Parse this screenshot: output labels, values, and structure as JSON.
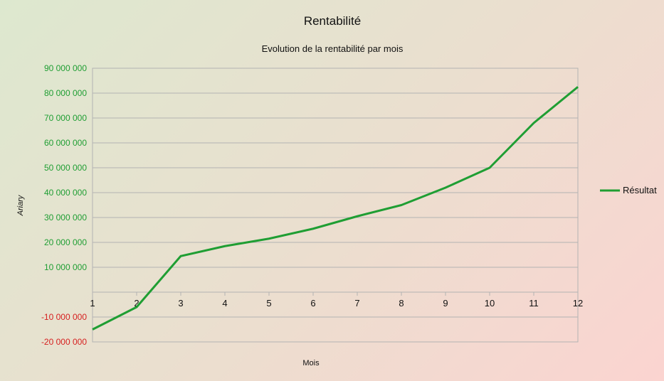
{
  "chart_data": {
    "type": "line",
    "title": "Rentabilité",
    "subtitle": "Evolution de la rentabilité par mois",
    "xlabel": "Mois",
    "ylabel": "Ariary",
    "categories": [
      "1",
      "2",
      "3",
      "4",
      "5",
      "6",
      "7",
      "8",
      "9",
      "10",
      "11",
      "12"
    ],
    "series": [
      {
        "name": "Résultat",
        "color": "#1f9e33",
        "values": [
          -15000000,
          -6000000,
          14500000,
          18500000,
          21500000,
          25500000,
          30500000,
          35000000,
          42000000,
          50000000,
          68000000,
          82500000
        ]
      }
    ],
    "ylim": [
      -20000000,
      90000000
    ],
    "y_ticks": [
      {
        "value": 90000000,
        "label": "90 000 000"
      },
      {
        "value": 80000000,
        "label": "80 000 000"
      },
      {
        "value": 70000000,
        "label": "70 000 000"
      },
      {
        "value": 60000000,
        "label": "60 000 000"
      },
      {
        "value": 50000000,
        "label": "50 000 000"
      },
      {
        "value": 40000000,
        "label": "40 000 000"
      },
      {
        "value": 30000000,
        "label": "30 000 000"
      },
      {
        "value": 20000000,
        "label": "20 000 000"
      },
      {
        "value": 10000000,
        "label": "10 000 000"
      },
      {
        "value": -10000000,
        "label": "-10 000 000"
      },
      {
        "value": -20000000,
        "label": "-20 000 000"
      }
    ],
    "positive_tick_color": "#1f9e33",
    "negative_tick_color": "#d61f1f",
    "grid": true,
    "legend_position": "right"
  }
}
